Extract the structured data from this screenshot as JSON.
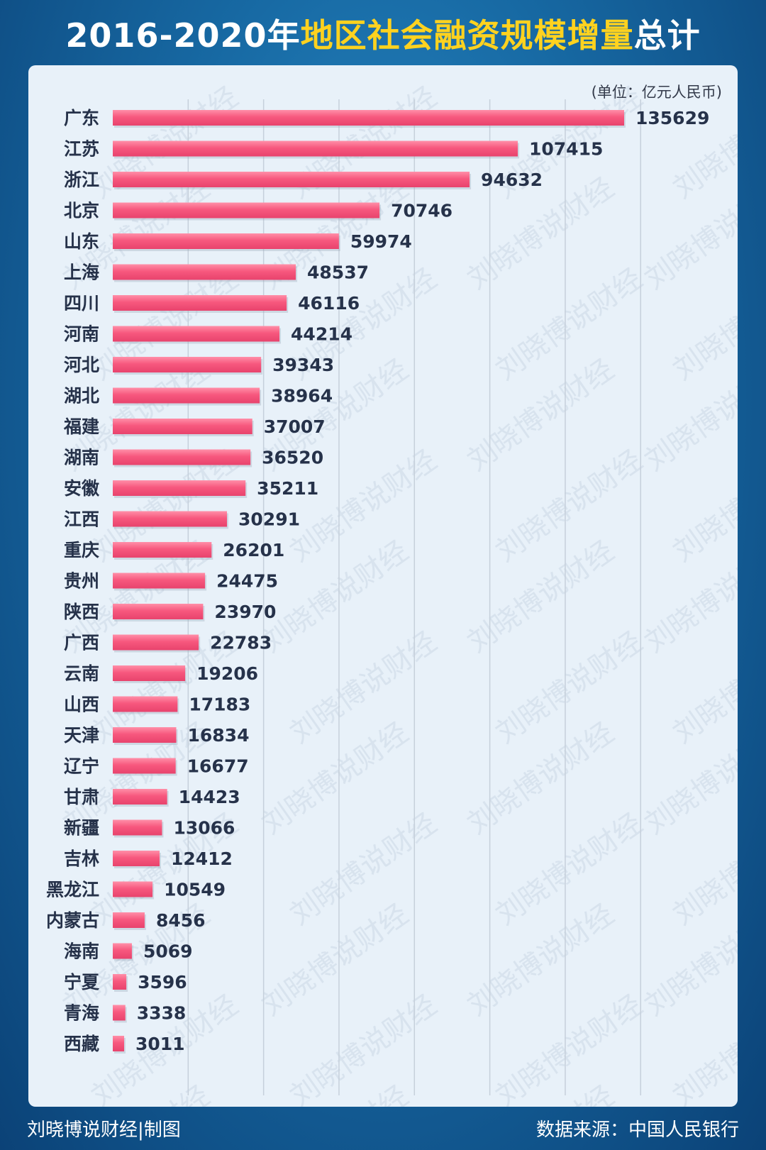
{
  "header": {
    "title_prefix": "2016-2020年",
    "title_highlight": "地区社会融资规模增量",
    "title_suffix": "总计"
  },
  "unit_label": "(单位：亿元人民币)",
  "watermark": "刘晓博说财经",
  "footer": {
    "credit": "刘晓博说财经|制图",
    "source": "数据来源：中国人民银行"
  },
  "colors": {
    "background": "#1769a3",
    "panel": "#e8f1f9",
    "bar": "#f7587e",
    "title_highlight": "#ffd21f",
    "label_text": "#26324a"
  },
  "chart_data": {
    "type": "bar",
    "orientation": "horizontal",
    "title": "2016-2020年地区社会融资规模增量总计",
    "unit": "亿元人民币",
    "xlim": [
      0,
      140000
    ],
    "grid": true,
    "categories": [
      "广东",
      "江苏",
      "浙江",
      "北京",
      "山东",
      "上海",
      "四川",
      "河南",
      "河北",
      "湖北",
      "福建",
      "湖南",
      "安徽",
      "江西",
      "重庆",
      "贵州",
      "陕西",
      "广西",
      "云南",
      "山西",
      "天津",
      "辽宁",
      "甘肃",
      "新疆",
      "吉林",
      "黑龙江",
      "内蒙古",
      "海南",
      "宁夏",
      "青海",
      "西藏"
    ],
    "values": [
      135629,
      107415,
      94632,
      70746,
      59974,
      48537,
      46116,
      44214,
      39343,
      38964,
      37007,
      36520,
      35211,
      30291,
      26201,
      24475,
      23970,
      22783,
      19206,
      17183,
      16834,
      16677,
      14423,
      13066,
      12412,
      10549,
      8456,
      5069,
      3596,
      3338,
      3011
    ]
  }
}
